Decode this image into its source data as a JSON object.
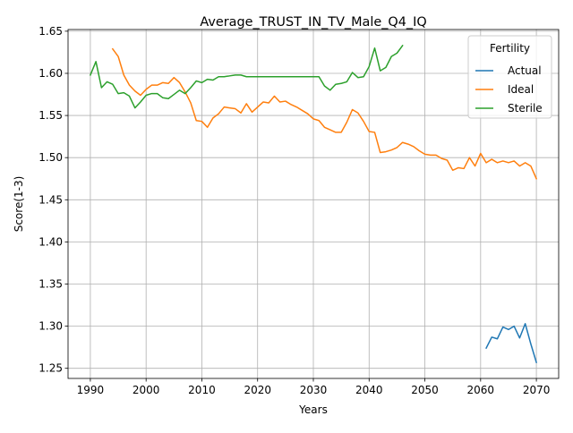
{
  "chart_data": {
    "type": "line",
    "title": "Average_TRUST_IN_TV_Male_Q4_IQ",
    "xlabel": "Years",
    "ylabel": "Score(1-3)",
    "xlim": [
      1986,
      2074
    ],
    "ylim": [
      1.238,
      1.652
    ],
    "xticks": [
      1990,
      2000,
      2010,
      2020,
      2030,
      2040,
      2050,
      2060,
      2070
    ],
    "yticks": [
      1.25,
      1.3,
      1.35,
      1.4,
      1.45,
      1.5,
      1.55,
      1.6,
      1.65
    ],
    "ytick_labels": [
      "1.25",
      "1.30",
      "1.35",
      "1.40",
      "1.45",
      "1.50",
      "1.55",
      "1.60",
      "1.65"
    ],
    "grid": true,
    "legend": {
      "title": "Fertility",
      "position": "top-right"
    },
    "series": [
      {
        "name": "Actual",
        "color": "#1f77b4",
        "x": [
          2061,
          2062,
          2063,
          2064,
          2065,
          2066,
          2067,
          2068,
          2069,
          2070
        ],
        "y": [
          1.274,
          1.287,
          1.285,
          1.299,
          1.296,
          1.3,
          1.286,
          1.303,
          1.279,
          1.257
        ]
      },
      {
        "name": "Ideal",
        "color": "#ff7f0e",
        "x": [
          1994,
          1995,
          1996,
          1997,
          1998,
          1999,
          2000,
          2001,
          2002,
          2003,
          2004,
          2005,
          2006,
          2007,
          2008,
          2009,
          2010,
          2011,
          2012,
          2013,
          2014,
          2015,
          2016,
          2017,
          2018,
          2019,
          2020,
          2021,
          2022,
          2023,
          2024,
          2025,
          2026,
          2027,
          2028,
          2029,
          2030,
          2031,
          2032,
          2033,
          2034,
          2035,
          2036,
          2037,
          2038,
          2039,
          2040,
          2041,
          2042,
          2043,
          2044,
          2045,
          2046,
          2047,
          2048,
          2049,
          2050,
          2051,
          2052,
          2053,
          2054,
          2055,
          2056,
          2057,
          2058,
          2059,
          2060,
          2061,
          2062,
          2063,
          2064,
          2065,
          2066,
          2067,
          2068,
          2069,
          2070
        ],
        "y": [
          1.629,
          1.62,
          1.598,
          1.586,
          1.579,
          1.574,
          1.581,
          1.586,
          1.586,
          1.589,
          1.588,
          1.595,
          1.589,
          1.578,
          1.565,
          1.544,
          1.543,
          1.536,
          1.547,
          1.552,
          1.56,
          1.559,
          1.558,
          1.553,
          1.564,
          1.554,
          1.56,
          1.566,
          1.565,
          1.573,
          1.566,
          1.567,
          1.563,
          1.56,
          1.556,
          1.552,
          1.546,
          1.544,
          1.536,
          1.533,
          1.53,
          1.53,
          1.542,
          1.557,
          1.553,
          1.543,
          1.531,
          1.53,
          1.506,
          1.507,
          1.509,
          1.512,
          1.518,
          1.516,
          1.513,
          1.508,
          1.504,
          1.503,
          1.503,
          1.499,
          1.497,
          1.485,
          1.488,
          1.487,
          1.5,
          1.49,
          1.505,
          1.494,
          1.498,
          1.494,
          1.496,
          1.494,
          1.496,
          1.49,
          1.494,
          1.49,
          1.475
        ]
      },
      {
        "name": "Sterile",
        "color": "#2ca02c",
        "x": [
          1990,
          1991,
          1992,
          1993,
          1994,
          1995,
          1996,
          1997,
          1998,
          1999,
          2000,
          2001,
          2002,
          2003,
          2004,
          2005,
          2006,
          2007,
          2008,
          2009,
          2010,
          2011,
          2012,
          2013,
          2014,
          2015,
          2016,
          2017,
          2018,
          2019,
          2020,
          2021,
          2022,
          2023,
          2024,
          2025,
          2026,
          2027,
          2028,
          2029,
          2030,
          2031,
          2032,
          2033,
          2034,
          2035,
          2036,
          2037,
          2038,
          2039,
          2040,
          2041,
          2042,
          2043,
          2044,
          2045,
          2046
        ],
        "y": [
          1.598,
          1.614,
          1.583,
          1.59,
          1.587,
          1.576,
          1.577,
          1.573,
          1.559,
          1.566,
          1.574,
          1.576,
          1.576,
          1.571,
          1.57,
          1.575,
          1.58,
          1.576,
          1.583,
          1.591,
          1.589,
          1.593,
          1.592,
          1.596,
          1.596,
          1.597,
          1.598,
          1.598,
          1.596,
          1.596,
          1.596,
          1.596,
          1.596,
          1.596,
          1.596,
          1.596,
          1.596,
          1.596,
          1.596,
          1.596,
          1.596,
          1.596,
          1.585,
          1.58,
          1.587,
          1.588,
          1.59,
          1.601,
          1.595,
          1.596,
          1.608,
          1.63,
          1.603,
          1.607,
          1.62,
          1.624,
          1.633
        ]
      }
    ]
  }
}
